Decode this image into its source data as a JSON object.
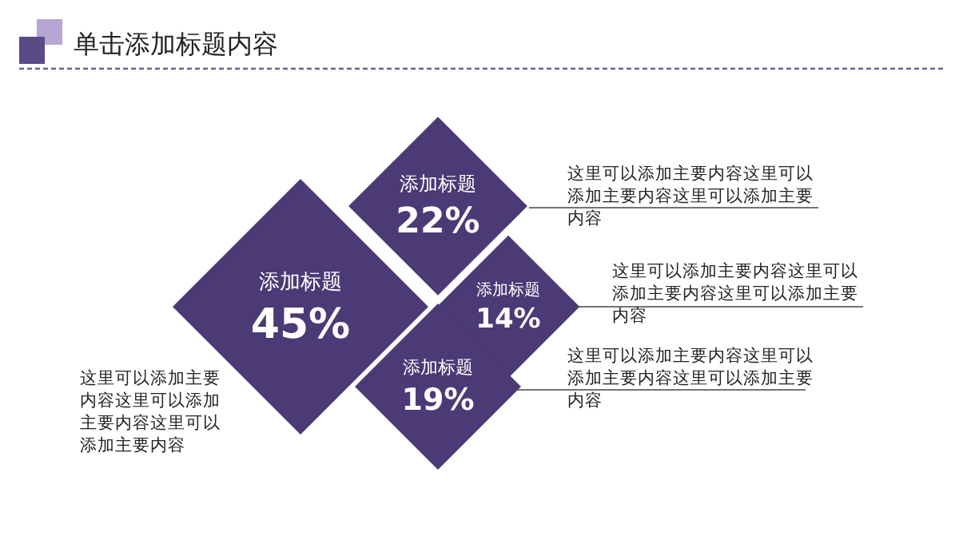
{
  "chart_data": {
    "type": "other",
    "title": "单击添加标题内容",
    "categories": [
      "添加标题",
      "添加标题",
      "添加标题",
      "添加标题"
    ],
    "values": [
      45,
      22,
      14,
      19
    ],
    "value_labels": [
      "45%",
      "22%",
      "14%",
      "19%"
    ],
    "color": "#4b3a75",
    "annotations": [
      "这里可以添加主要内容这里可以添加主要内容这里可以添加主要内容",
      "这里可以添加主要内容这里可以添加主要内容这里可以添加主要内容",
      "这里可以添加主要内容这里可以添加主要内容这里可以添加主要内容",
      "这里可以添加主要内容这里可以添加主要内容这里可以添加主要内容"
    ]
  }
}
